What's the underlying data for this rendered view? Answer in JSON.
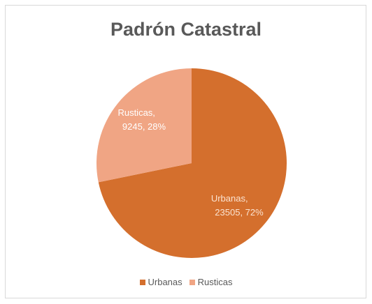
{
  "chart_data": {
    "type": "pie",
    "title": "Padrón Catastral",
    "slices": [
      {
        "name": "Urbanas",
        "value": 23505,
        "percent": "72%",
        "label_line1": "Urbanas,",
        "label_line2": "23505, 72%",
        "color": "#d46f2d",
        "label_color": "#fbe3d1"
      },
      {
        "name": "Rusticas",
        "value": 9245,
        "percent": "28%",
        "label_line1": "Rusticas,",
        "label_line2": "9245, 28%",
        "color": "#f0a584",
        "label_color": "#ffffff"
      }
    ],
    "legend_position": "bottom",
    "legend": [
      "Urbanas",
      "Rusticas"
    ]
  }
}
